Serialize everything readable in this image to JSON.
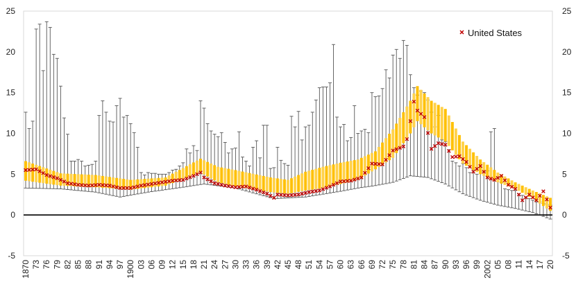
{
  "chart_data": {
    "type": "range-band-scatter",
    "title": "",
    "xlabel": "",
    "ylabel": "",
    "ylim": [
      -5,
      25
    ],
    "yticks": [
      -5,
      0,
      5,
      10,
      15,
      20,
      25
    ],
    "x_start": 1870,
    "x_end": 2020,
    "x_tick_step": 3,
    "x_tick_labels": [
      "1870",
      "73",
      "76",
      "79",
      "82",
      "85",
      "88",
      "91",
      "94",
      "97",
      "1900",
      "03",
      "06",
      "09",
      "12",
      "15",
      "18",
      "21",
      "24",
      "27",
      "30",
      "33",
      "36",
      "39",
      "42",
      "45",
      "48",
      "51",
      "54",
      "57",
      "60",
      "63",
      "66",
      "69",
      "72",
      "75",
      "78",
      "81",
      "84",
      "87",
      "90",
      "93",
      "96",
      "99",
      "2002",
      "05",
      "08",
      "11",
      "14",
      "17",
      "20"
    ],
    "zero_line": true,
    "legend": {
      "position": "top-right",
      "entries": [
        "United States"
      ]
    },
    "colors": {
      "band": "#FFC000",
      "band_stripe": "#FFE9A6",
      "whisker": "#555555",
      "marker": "#C00000",
      "axis": "#000000"
    },
    "series": [
      {
        "name": "United States",
        "marker": "x",
        "anchors": [
          [
            1870,
            5.5
          ],
          [
            1873,
            5.6
          ],
          [
            1876,
            4.9
          ],
          [
            1879,
            4.5
          ],
          [
            1882,
            3.9
          ],
          [
            1885,
            3.7
          ],
          [
            1888,
            3.6
          ],
          [
            1891,
            3.7
          ],
          [
            1894,
            3.6
          ],
          [
            1897,
            3.3
          ],
          [
            1900,
            3.3
          ],
          [
            1903,
            3.6
          ],
          [
            1906,
            3.8
          ],
          [
            1909,
            4.0
          ],
          [
            1912,
            4.2
          ],
          [
            1915,
            4.3
          ],
          [
            1918,
            4.8
          ],
          [
            1920,
            5.2
          ],
          [
            1921,
            4.6
          ],
          [
            1924,
            3.9
          ],
          [
            1927,
            3.6
          ],
          [
            1930,
            3.4
          ],
          [
            1933,
            3.5
          ],
          [
            1936,
            3.1
          ],
          [
            1939,
            2.6
          ],
          [
            1941,
            2.1
          ],
          [
            1942,
            2.5
          ],
          [
            1945,
            2.4
          ],
          [
            1948,
            2.5
          ],
          [
            1951,
            2.8
          ],
          [
            1954,
            3.0
          ],
          [
            1957,
            3.5
          ],
          [
            1960,
            4.1
          ],
          [
            1963,
            4.2
          ],
          [
            1966,
            4.6
          ],
          [
            1969,
            6.3
          ],
          [
            1972,
            6.2
          ],
          [
            1975,
            7.9
          ],
          [
            1978,
            8.4
          ],
          [
            1979,
            9.3
          ],
          [
            1980,
            11.5
          ],
          [
            1981,
            13.9
          ],
          [
            1982,
            12.8
          ],
          [
            1984,
            12.0
          ],
          [
            1986,
            8.1
          ],
          [
            1988,
            8.8
          ],
          [
            1990,
            8.6
          ],
          [
            1992,
            7.1
          ],
          [
            1994,
            7.2
          ],
          [
            1996,
            6.5
          ],
          [
            1998,
            5.3
          ],
          [
            2000,
            6.0
          ],
          [
            2002,
            4.6
          ],
          [
            2004,
            4.3
          ],
          [
            2006,
            4.8
          ],
          [
            2008,
            3.7
          ],
          [
            2010,
            3.2
          ],
          [
            2012,
            1.8
          ],
          [
            2014,
            2.5
          ],
          [
            2016,
            1.8
          ],
          [
            2018,
            2.9
          ],
          [
            2020,
            0.9
          ]
        ]
      },
      {
        "name": "",
        "role": "band-lower",
        "anchors": [
          [
            1870,
            4.2
          ],
          [
            1880,
            3.6
          ],
          [
            1890,
            3.4
          ],
          [
            1900,
            3.1
          ],
          [
            1910,
            3.6
          ],
          [
            1920,
            5.2
          ],
          [
            1925,
            4.0
          ],
          [
            1930,
            3.5
          ],
          [
            1940,
            2.8
          ],
          [
            1945,
            2.6
          ],
          [
            1950,
            3.0
          ],
          [
            1955,
            3.3
          ],
          [
            1960,
            3.8
          ],
          [
            1965,
            4.3
          ],
          [
            1970,
            5.6
          ],
          [
            1975,
            7.0
          ],
          [
            1980,
            10.0
          ],
          [
            1982,
            11.5
          ],
          [
            1986,
            10.0
          ],
          [
            1990,
            9.0
          ],
          [
            1995,
            6.3
          ],
          [
            2000,
            5.0
          ],
          [
            2005,
            4.0
          ],
          [
            2010,
            3.2
          ],
          [
            2015,
            2.0
          ],
          [
            2020,
            0.5
          ]
        ]
      },
      {
        "name": "",
        "role": "band-upper",
        "anchors": [
          [
            1870,
            6.6
          ],
          [
            1880,
            5.1
          ],
          [
            1890,
            4.9
          ],
          [
            1900,
            4.3
          ],
          [
            1910,
            4.6
          ],
          [
            1920,
            6.9
          ],
          [
            1925,
            5.9
          ],
          [
            1930,
            5.5
          ],
          [
            1940,
            4.6
          ],
          [
            1945,
            4.3
          ],
          [
            1950,
            5.3
          ],
          [
            1955,
            5.9
          ],
          [
            1960,
            6.4
          ],
          [
            1965,
            6.8
          ],
          [
            1970,
            7.8
          ],
          [
            1975,
            10.5
          ],
          [
            1980,
            14.0
          ],
          [
            1982,
            15.8
          ],
          [
            1986,
            14.0
          ],
          [
            1990,
            13.0
          ],
          [
            1995,
            9.0
          ],
          [
            2000,
            6.8
          ],
          [
            2005,
            5.2
          ],
          [
            2010,
            4.0
          ],
          [
            2015,
            3.0
          ],
          [
            2020,
            2.1
          ]
        ]
      },
      {
        "name": "",
        "role": "whisker-min",
        "anchors": [
          [
            1870,
            3.3
          ],
          [
            1880,
            3.2
          ],
          [
            1890,
            2.8
          ],
          [
            1897,
            2.2
          ],
          [
            1905,
            2.8
          ],
          [
            1915,
            3.4
          ],
          [
            1921,
            3.8
          ],
          [
            1930,
            3.3
          ],
          [
            1941,
            2.0
          ],
          [
            1950,
            2.2
          ],
          [
            1960,
            2.9
          ],
          [
            1965,
            3.3
          ],
          [
            1970,
            3.6
          ],
          [
            1975,
            4.0
          ],
          [
            1980,
            4.8
          ],
          [
            1985,
            4.6
          ],
          [
            1990,
            3.8
          ],
          [
            1995,
            2.6
          ],
          [
            2000,
            1.8
          ],
          [
            2005,
            1.2
          ],
          [
            2010,
            0.8
          ],
          [
            2015,
            0.3
          ],
          [
            2020,
            -0.5
          ]
        ]
      },
      {
        "name": "",
        "role": "whisker-max",
        "anchors": [
          [
            1870,
            12.6
          ],
          [
            1871,
            10.6
          ],
          [
            1872,
            11.5
          ],
          [
            1873,
            22.8
          ],
          [
            1874,
            23.4
          ],
          [
            1875,
            17.7
          ],
          [
            1876,
            23.7
          ],
          [
            1877,
            23.0
          ],
          [
            1878,
            19.7
          ],
          [
            1879,
            19.2
          ],
          [
            1880,
            15.8
          ],
          [
            1881,
            11.9
          ],
          [
            1882,
            9.9
          ],
          [
            1883,
            6.6
          ],
          [
            1884,
            6.6
          ],
          [
            1885,
            6.8
          ],
          [
            1886,
            6.6
          ],
          [
            1887,
            6.0
          ],
          [
            1888,
            6.1
          ],
          [
            1889,
            6.2
          ],
          [
            1890,
            6.6
          ],
          [
            1891,
            12.2
          ],
          [
            1892,
            14.0
          ],
          [
            1893,
            12.6
          ],
          [
            1894,
            11.5
          ],
          [
            1895,
            11.4
          ],
          [
            1896,
            13.4
          ],
          [
            1897,
            14.3
          ],
          [
            1898,
            12.0
          ],
          [
            1899,
            12.2
          ],
          [
            1900,
            11.2
          ],
          [
            1901,
            10.1
          ],
          [
            1902,
            8.3
          ],
          [
            1903,
            5.2
          ],
          [
            1904,
            4.9
          ],
          [
            1905,
            5.2
          ],
          [
            1906,
            5.1
          ],
          [
            1907,
            5.1
          ],
          [
            1908,
            5.0
          ],
          [
            1909,
            5.0
          ],
          [
            1910,
            5.0
          ],
          [
            1911,
            5.2
          ],
          [
            1912,
            5.5
          ],
          [
            1913,
            5.6
          ],
          [
            1914,
            6.0
          ],
          [
            1915,
            6.4
          ],
          [
            1916,
            8.1
          ],
          [
            1917,
            7.6
          ],
          [
            1918,
            8.5
          ],
          [
            1919,
            7.9
          ],
          [
            1920,
            14.0
          ],
          [
            1921,
            13.1
          ],
          [
            1922,
            11.2
          ],
          [
            1923,
            10.3
          ],
          [
            1924,
            9.9
          ],
          [
            1925,
            9.6
          ],
          [
            1926,
            10.1
          ],
          [
            1927,
            8.9
          ],
          [
            1928,
            7.6
          ],
          [
            1929,
            8.1
          ],
          [
            1930,
            8.2
          ],
          [
            1931,
            10.2
          ],
          [
            1932,
            7.1
          ],
          [
            1933,
            6.6
          ],
          [
            1934,
            6.0
          ],
          [
            1935,
            8.3
          ],
          [
            1936,
            9.1
          ],
          [
            1937,
            7.0
          ],
          [
            1938,
            11.0
          ],
          [
            1939,
            11.0
          ],
          [
            1940,
            5.7
          ],
          [
            1941,
            5.8
          ],
          [
            1942,
            8.3
          ],
          [
            1943,
            6.7
          ],
          [
            1944,
            6.3
          ],
          [
            1945,
            6.1
          ],
          [
            1946,
            12.1
          ],
          [
            1947,
            10.8
          ],
          [
            1948,
            12.7
          ],
          [
            1949,
            9.2
          ],
          [
            1950,
            10.8
          ],
          [
            1951,
            11.0
          ],
          [
            1952,
            12.6
          ],
          [
            1953,
            14.1
          ],
          [
            1954,
            15.6
          ],
          [
            1955,
            15.7
          ],
          [
            1956,
            15.7
          ],
          [
            1957,
            16.2
          ],
          [
            1958,
            20.9
          ],
          [
            1959,
            12.0
          ],
          [
            1960,
            10.8
          ],
          [
            1961,
            11.1
          ],
          [
            1962,
            9.1
          ],
          [
            1963,
            9.5
          ],
          [
            1964,
            13.4
          ],
          [
            1965,
            10.0
          ],
          [
            1966,
            10.3
          ],
          [
            1967,
            10.5
          ],
          [
            1968,
            10.1
          ],
          [
            1969,
            15.0
          ],
          [
            1970,
            14.5
          ],
          [
            1971,
            14.6
          ],
          [
            1972,
            15.5
          ],
          [
            1973,
            17.8
          ],
          [
            1974,
            16.8
          ],
          [
            1975,
            19.6
          ],
          [
            1976,
            20.3
          ],
          [
            1977,
            19.2
          ],
          [
            1978,
            21.4
          ],
          [
            1979,
            20.8
          ],
          [
            1980,
            17.2
          ],
          [
            1981,
            15.6
          ],
          [
            1982,
            14.7
          ],
          [
            1983,
            15.2
          ],
          [
            1984,
            15.0
          ],
          [
            1985,
            14.1
          ],
          [
            1986,
            12.6
          ],
          [
            1987,
            10.8
          ],
          [
            1988,
            12.2
          ],
          [
            1989,
            9.2
          ],
          [
            1990,
            9.0
          ],
          [
            1991,
            8.0
          ],
          [
            1992,
            6.6
          ],
          [
            1993,
            6.4
          ],
          [
            1994,
            6.0
          ],
          [
            1995,
            6.3
          ],
          [
            1996,
            5.8
          ],
          [
            1997,
            5.2
          ],
          [
            1998,
            5.6
          ],
          [
            1999,
            5.0
          ],
          [
            2000,
            5.8
          ],
          [
            2001,
            5.3
          ],
          [
            2002,
            5.4
          ],
          [
            2003,
            10.2
          ],
          [
            2004,
            10.6
          ],
          [
            2005,
            4.6
          ],
          [
            2006,
            4.0
          ],
          [
            2007,
            3.2
          ],
          [
            2008,
            3.1
          ],
          [
            2009,
            3.0
          ],
          [
            2010,
            3.0
          ],
          [
            2011,
            2.6
          ],
          [
            2012,
            2.4
          ],
          [
            2013,
            2.2
          ],
          [
            2014,
            2.0
          ],
          [
            2015,
            1.8
          ],
          [
            2016,
            1.6
          ],
          [
            2017,
            1.6
          ],
          [
            2018,
            1.4
          ],
          [
            2019,
            1.3
          ],
          [
            2020,
            1.2
          ]
        ]
      }
    ]
  }
}
